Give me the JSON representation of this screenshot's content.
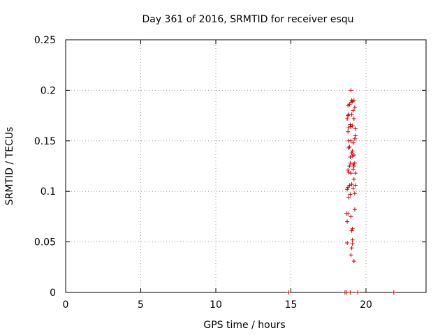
{
  "chart_data": {
    "type": "scatter",
    "title": "Day 361 of 2016, SRMTID for receiver esqu",
    "xlabel": "GPS time / hours",
    "ylabel": "SRMTID / TECUs",
    "xlim": [
      0,
      24
    ],
    "ylim": [
      0,
      0.25
    ],
    "xticks": [
      0,
      5,
      10,
      15,
      20
    ],
    "xtick_labels": [
      "0",
      "5",
      "10",
      "15",
      "20"
    ],
    "yticks": [
      0,
      0.05,
      0.1,
      0.15,
      0.2,
      0.25
    ],
    "ytick_labels": [
      "0",
      "0.05",
      "0.1",
      "0.15",
      "0.2",
      "0.25"
    ],
    "grid": true,
    "marker": "+",
    "color": "#cc0000",
    "points": [
      [
        14.85,
        0.0
      ],
      [
        18.6,
        0.0
      ],
      [
        18.7,
        0.0
      ],
      [
        18.95,
        0.0
      ],
      [
        19.45,
        0.0
      ],
      [
        21.85,
        0.0
      ],
      [
        18.75,
        0.049
      ],
      [
        18.75,
        0.07
      ],
      [
        18.7,
        0.078
      ],
      [
        18.8,
        0.078
      ],
      [
        18.85,
        0.094
      ],
      [
        18.75,
        0.102
      ],
      [
        18.8,
        0.104
      ],
      [
        18.85,
        0.119
      ],
      [
        18.8,
        0.121
      ],
      [
        18.9,
        0.125
      ],
      [
        18.85,
        0.143
      ],
      [
        18.9,
        0.144
      ],
      [
        18.85,
        0.15
      ],
      [
        18.8,
        0.159
      ],
      [
        18.85,
        0.163
      ],
      [
        18.75,
        0.172
      ],
      [
        18.8,
        0.175
      ],
      [
        18.85,
        0.176
      ],
      [
        18.8,
        0.185
      ],
      [
        18.9,
        0.186
      ],
      [
        19.0,
        0.2
      ],
      [
        19.0,
        0.188
      ],
      [
        19.05,
        0.19
      ],
      [
        18.95,
        0.166
      ],
      [
        19.0,
        0.15
      ],
      [
        19.05,
        0.138
      ],
      [
        18.95,
        0.128
      ],
      [
        19.0,
        0.118
      ],
      [
        19.05,
        0.107
      ],
      [
        18.95,
        0.097
      ],
      [
        19.0,
        0.075
      ],
      [
        19.1,
        0.063
      ],
      [
        19.05,
        0.061
      ],
      [
        19.1,
        0.048
      ],
      [
        19.05,
        0.044
      ],
      [
        19.0,
        0.037
      ],
      [
        19.2,
        0.031
      ],
      [
        19.1,
        0.052
      ],
      [
        19.25,
        0.082
      ],
      [
        19.15,
        0.103
      ],
      [
        19.2,
        0.112
      ],
      [
        19.15,
        0.122
      ],
      [
        19.25,
        0.128
      ],
      [
        19.2,
        0.136
      ],
      [
        19.1,
        0.14
      ],
      [
        19.15,
        0.148
      ],
      [
        19.25,
        0.152
      ],
      [
        19.1,
        0.165
      ],
      [
        19.2,
        0.172
      ],
      [
        19.15,
        0.18
      ],
      [
        19.25,
        0.183
      ],
      [
        19.2,
        0.19
      ],
      [
        19.3,
        0.162
      ],
      [
        19.3,
        0.155
      ],
      [
        19.3,
        0.118
      ],
      [
        19.3,
        0.106
      ],
      [
        19.25,
        0.098
      ],
      [
        19.15,
        0.127
      ],
      [
        19.2,
        0.125
      ],
      [
        19.1,
        0.135
      ],
      [
        19.05,
        0.176
      ],
      [
        19.1,
        0.189
      ],
      [
        18.9,
        0.106
      ],
      [
        18.95,
        0.134
      ],
      [
        19.0,
        0.164
      ]
    ]
  }
}
